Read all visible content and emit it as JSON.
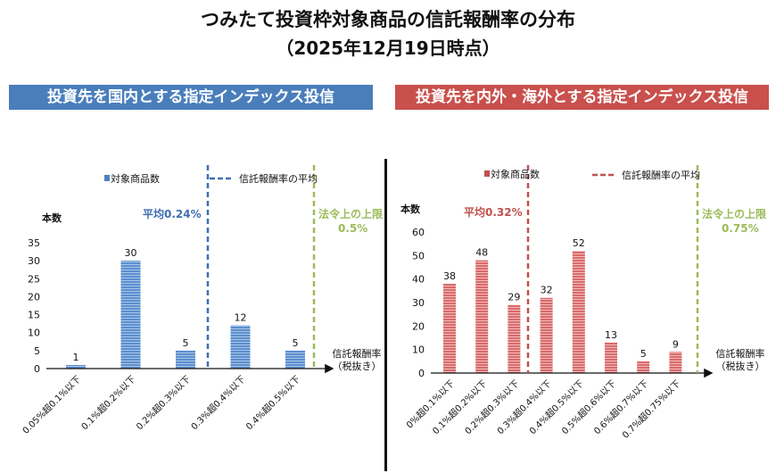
{
  "title": "つみたて投資枠対象商品の信託報酬率の分布",
  "subtitle": "（2025年12月19日時点）",
  "chart_data": [
    {
      "type": "bar",
      "banner": "投資先を国内とする指定インデックス投信",
      "color": "#4f81bd",
      "avg_color": "#3f6fb0",
      "limit_color": "#9bbb59",
      "legend_bar": "対象商品数",
      "legend_line": "信託報酬率の平均",
      "ylabel": "本数",
      "xlabel": [
        "信託報酬率",
        "（税抜き）"
      ],
      "ylim": [
        0,
        35
      ],
      "yticks": [
        0,
        5,
        10,
        15,
        20,
        25,
        30,
        35
      ],
      "categories": [
        "0.05%超0.1%以下",
        "0.1%超0.2%以下",
        "0.2%超0.3%以下",
        "0.3%超0.4%以下",
        "0.4%超0.5%以下"
      ],
      "values": [
        1,
        30,
        5,
        12,
        5
      ],
      "average": {
        "label": "平均0.24%",
        "value": 0.24
      },
      "limit": {
        "label": [
          "法令上の上限",
          "0.5%"
        ],
        "value": 0.5
      }
    },
    {
      "type": "bar",
      "banner": "投資先を内外・海外とする指定インデックス投信",
      "color": "#c0504d",
      "avg_color": "#c0504d",
      "limit_color": "#9bbb59",
      "legend_bar": "対象商品数",
      "legend_line": "信託報酬率の平均",
      "ylabel": "本数",
      "xlabel": [
        "信託報酬率",
        "（税抜き）"
      ],
      "ylim": [
        0,
        60
      ],
      "yticks": [
        0,
        10,
        20,
        30,
        40,
        50,
        60
      ],
      "categories": [
        "0%超0.1%以下",
        "0.1%超0.2%以下",
        "0.2%超0.3%以下",
        "0.3%超0.4%以下",
        "0.4%超0.5%以下",
        "0.5%超0.6%以下",
        "0.6%超0.7%以下",
        "0.7%超0.75%以下"
      ],
      "values": [
        38,
        48,
        29,
        32,
        52,
        13,
        5,
        9
      ],
      "average": {
        "label": "平均0.32%",
        "value": 0.32
      },
      "limit": {
        "label": [
          "法令上の上限",
          "0.75%"
        ],
        "value": 0.75
      }
    }
  ]
}
